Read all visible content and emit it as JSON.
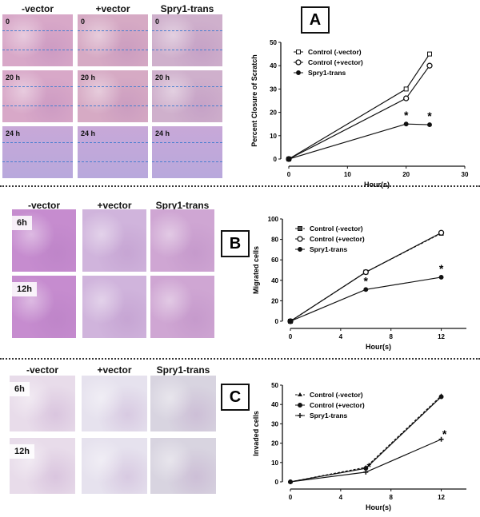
{
  "panels": [
    {
      "label": "A",
      "columns": [
        "-vector",
        "+vector",
        "Spry1-trans"
      ],
      "rows": [
        "0",
        "20 h",
        "24 h"
      ]
    },
    {
      "label": "B",
      "columns": [
        "-vector",
        "+vector",
        "Spry1-trans"
      ],
      "rows": [
        "6h",
        "12h"
      ]
    },
    {
      "label": "C",
      "columns": [
        "-vector",
        "+vector",
        "Spry1-trans"
      ],
      "rows": [
        "6h",
        "12h"
      ]
    }
  ],
  "colors": {
    "scratch_line": "#4a7fd0",
    "stain_purple": "#9a5fb8",
    "ink": "#111111"
  },
  "chart_data": [
    {
      "type": "line",
      "panel": "A",
      "xlabel": "Hour(s)",
      "ylabel": "Percent Closure of Scratch",
      "xlim": [
        0,
        30
      ],
      "ylim": [
        0,
        50
      ],
      "xticks": [
        0,
        10,
        20,
        30
      ],
      "yticks": [
        0,
        10,
        20,
        30,
        40,
        50
      ],
      "legend": "top-left",
      "x": [
        0,
        20,
        24
      ],
      "series": [
        {
          "name": "Control (-vector)",
          "marker": "square-open",
          "values": [
            0,
            30,
            45
          ]
        },
        {
          "name": "Control (+vector)",
          "marker": "circle-open",
          "values": [
            0,
            26,
            40
          ]
        },
        {
          "name": "Spry1-trans",
          "marker": "circle-filled",
          "values": [
            0,
            15,
            14.7
          ]
        }
      ],
      "annotations": [
        {
          "text": "*",
          "x": 20
        },
        {
          "text": "*",
          "x": 24
        }
      ]
    },
    {
      "type": "line",
      "panel": "B",
      "xlabel": "Hour(s)",
      "ylabel": "Migrated cells",
      "xlim": [
        0,
        14
      ],
      "ylim": [
        0,
        100
      ],
      "xticks": [
        0,
        4,
        8,
        12
      ],
      "yticks": [
        0,
        20,
        40,
        60,
        80,
        100
      ],
      "legend": "top-left",
      "x": [
        0,
        6,
        12
      ],
      "series": [
        {
          "name": "Control (-vector)",
          "marker": "square-half",
          "dashed": true,
          "values": [
            0,
            48,
            86
          ]
        },
        {
          "name": "Control (+vector)",
          "marker": "circle-open",
          "values": [
            0,
            48,
            86.5
          ]
        },
        {
          "name": "Spry1-trans",
          "marker": "circle-filled",
          "values": [
            0,
            31,
            43
          ]
        }
      ],
      "annotations": [
        {
          "text": "*",
          "x": 6
        },
        {
          "text": "*",
          "x": 12
        }
      ]
    },
    {
      "type": "line",
      "panel": "C",
      "xlabel": "Hour(s)",
      "ylabel": "Invaded cells",
      "xlim": [
        0,
        14
      ],
      "ylim": [
        0,
        50
      ],
      "xticks": [
        0,
        4,
        8,
        12
      ],
      "yticks": [
        0,
        10,
        20,
        30,
        40,
        50
      ],
      "legend": "top-left",
      "x": [
        0,
        6,
        12
      ],
      "series": [
        {
          "name": "Control (-vector)",
          "marker": "triangle-filled",
          "dashed": true,
          "values": [
            0,
            7.5,
            44.5
          ]
        },
        {
          "name": "Control (+vector)",
          "marker": "circle-filled",
          "values": [
            0,
            7,
            44
          ]
        },
        {
          "name": "Spry1-trans",
          "marker": "star",
          "values": [
            0,
            5,
            22
          ]
        }
      ],
      "annotations": [
        {
          "text": "*",
          "x": 6
        },
        {
          "text": "*",
          "x": 12
        }
      ]
    }
  ]
}
